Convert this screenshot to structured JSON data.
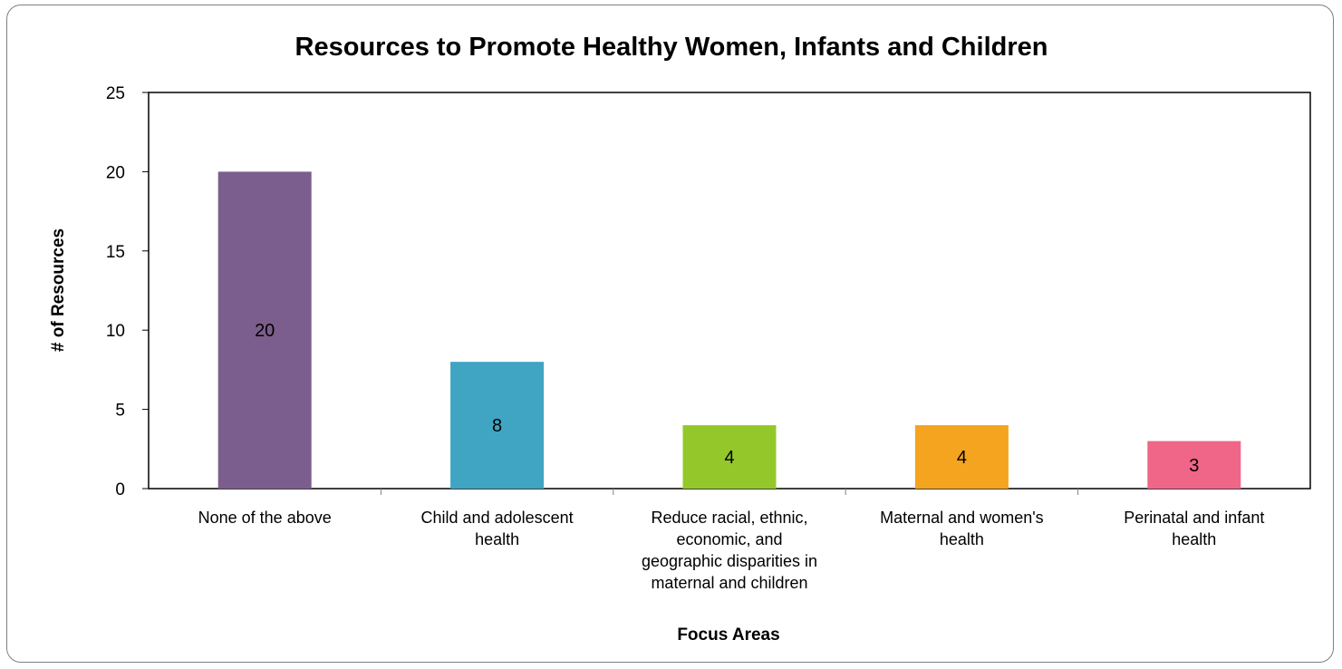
{
  "chart_data": {
    "type": "bar",
    "title": "Resources to Promote Healthy Women, Infants and Children",
    "xlabel": "Focus Areas",
    "ylabel": "# of Resources",
    "ylim": [
      0,
      25
    ],
    "yticks": [
      0,
      5,
      10,
      15,
      20,
      25
    ],
    "grid": false,
    "legend": "none",
    "categories": [
      [
        "None of the above"
      ],
      [
        "Child and adolescent",
        "health"
      ],
      [
        "Reduce racial, ethnic,",
        "economic, and",
        "geographic disparities in",
        "maternal and children"
      ],
      [
        "Maternal and women's",
        "health"
      ],
      [
        "Perinatal and infant",
        "health"
      ]
    ],
    "values": [
      20,
      8,
      4,
      4,
      3
    ],
    "colors": [
      "#7b5e8d",
      "#40a4c3",
      "#94c82a",
      "#f4a41e",
      "#ef6688"
    ]
  }
}
